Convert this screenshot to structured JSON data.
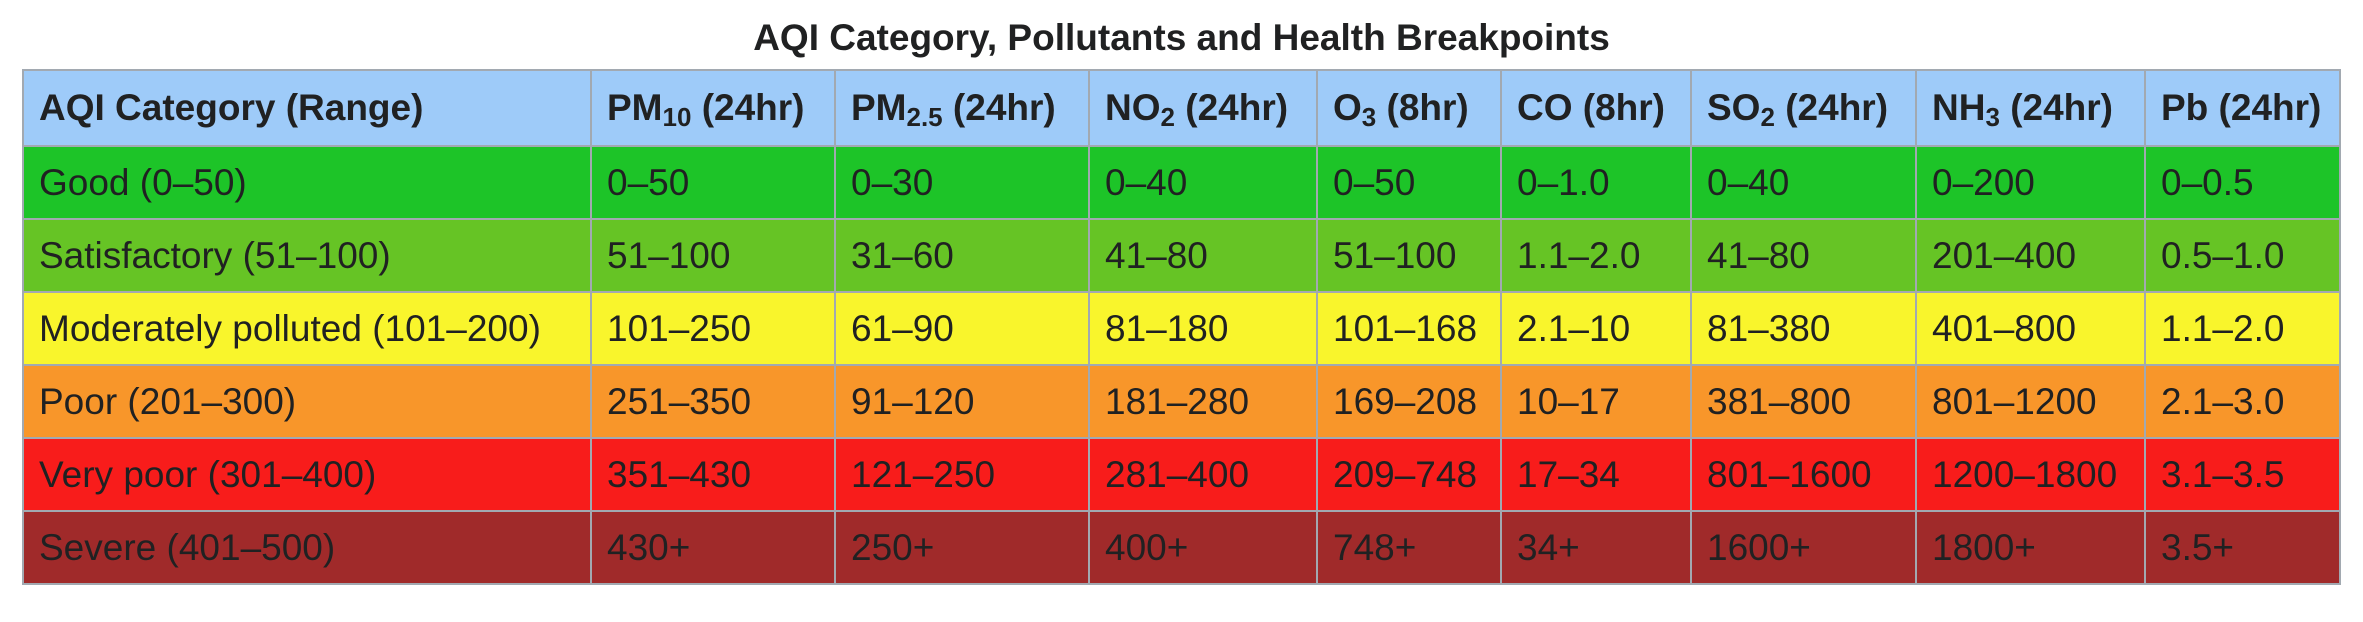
{
  "caption": "AQI Category, Pollutants and Health Breakpoints",
  "headers": [
    {
      "main": "AQI Category (Range)",
      "sub": "",
      "tail": ""
    },
    {
      "main": "PM",
      "sub": "10",
      "tail": " (24hr)"
    },
    {
      "main": "PM",
      "sub": "2.5",
      "tail": " (24hr)"
    },
    {
      "main": "NO",
      "sub": "2",
      "tail": " (24hr)"
    },
    {
      "main": "O",
      "sub": "3",
      "tail": " (8hr)"
    },
    {
      "main": "CO (8hr)",
      "sub": "",
      "tail": ""
    },
    {
      "main": "SO",
      "sub": "2",
      "tail": " (24hr)"
    },
    {
      "main": "NH",
      "sub": "3",
      "tail": " (24hr)"
    },
    {
      "main": "Pb (24hr)",
      "sub": "",
      "tail": ""
    }
  ],
  "rows": [
    {
      "color": "#1dc428",
      "cells": [
        "Good (0–50)",
        "0–50",
        "0–30",
        "0–40",
        "0–50",
        "0–1.0",
        "0–40",
        "0–200",
        "0–0.5"
      ]
    },
    {
      "color": "#66c425",
      "cells": [
        "Satisfactory (51–100)",
        "51–100",
        "31–60",
        "41–80",
        "51–100",
        "1.1–2.0",
        "41–80",
        "201–400",
        "0.5–1.0"
      ]
    },
    {
      "color": "#f9f52c",
      "cells": [
        "Moderately polluted (101–200)",
        "101–250",
        "61–90",
        "81–180",
        "101–168",
        "2.1–10",
        "81–380",
        "401–800",
        "1.1–2.0"
      ]
    },
    {
      "color": "#f8962a",
      "cells": [
        "Poor (201–300)",
        "251–350",
        "91–120",
        "181–280",
        "169–208",
        "10–17",
        "381–800",
        "801–1200",
        "2.1–3.0"
      ]
    },
    {
      "color": "#f81c1b",
      "cells": [
        "Very poor (301–400)",
        "351–430",
        "121–250",
        "281–400",
        "209–748",
        "17–34",
        "801–1600",
        "1200–1800",
        "3.1–3.5"
      ]
    },
    {
      "color": "#a02a2a",
      "cells": [
        "Severe (401–500)",
        "430+",
        "250+",
        "400+",
        "748+",
        "34+",
        "1600+",
        "1800+",
        "3.5+"
      ]
    }
  ],
  "colors": {
    "header_bg": "#9ecbf9",
    "border": "#a2a9b1"
  }
}
